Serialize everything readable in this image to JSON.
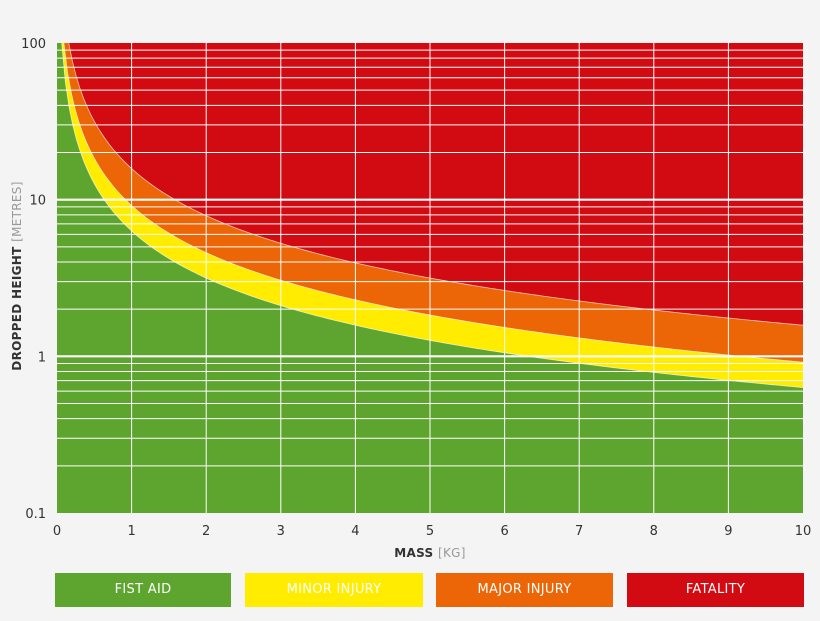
{
  "chart_data": {
    "type": "area",
    "xlabel": "MASS",
    "xlabel_unit": "[KG]",
    "ylabel": "DROPPED HEIGHT",
    "ylabel_unit": "[METRES]",
    "xlim": [
      0,
      10
    ],
    "ylim": [
      0.1,
      100
    ],
    "yscale": "log",
    "x_ticks": [
      "0",
      "1",
      "2",
      "3",
      "4",
      "5",
      "6",
      "7",
      "8",
      "9",
      "10"
    ],
    "y_ticks": [
      {
        "value": 100,
        "label": "100"
      },
      {
        "value": 10,
        "label": "10"
      },
      {
        "value": 1,
        "label": "1"
      },
      {
        "value": 0.1,
        "label": "0.1"
      }
    ],
    "grid": true,
    "boundaries": [
      {
        "name": "FIST AID / MINOR INJURY",
        "energy_j": 62
      },
      {
        "name": "MINOR INJURY / MAJOR INJURY",
        "energy_j": 90
      },
      {
        "name": "MAJOR INJURY / FATALITY",
        "energy_j": 155
      }
    ],
    "series": [
      {
        "name": "FIST AID",
        "color": "#5ea52f"
      },
      {
        "name": "MINOR INJURY",
        "color": "#ffec00"
      },
      {
        "name": "MAJOR INJURY",
        "color": "#ec6608"
      },
      {
        "name": "FATALITY",
        "color": "#d20a11"
      }
    ],
    "legend_position": "bottom"
  }
}
